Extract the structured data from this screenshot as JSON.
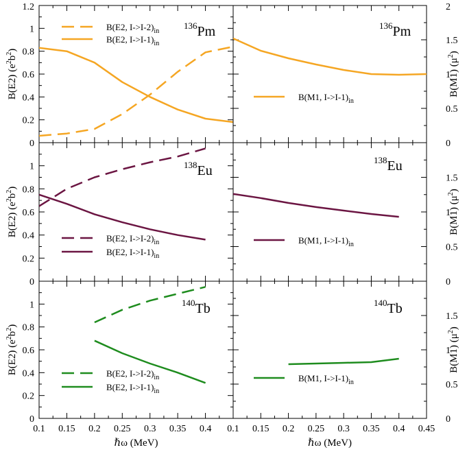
{
  "chart_data": [
    {
      "type": "line",
      "panel": "top-left",
      "nucleus": {
        "mass": "136",
        "symbol": "Pm"
      },
      "ylabel": {
        "main": "B(E2) (e",
        "sup1": "2",
        "mid": "b",
        "sup2": "2",
        "end": ")"
      },
      "xlim": [
        0.1,
        0.45
      ],
      "ylim": [
        0,
        1.2
      ],
      "yticks": [
        "0",
        "0.2",
        "0.4",
        "0.6",
        "0.8",
        "1",
        "1.2"
      ],
      "color": "#f5a623",
      "series": [
        {
          "name": "B(E2, I->I-2)",
          "sub": "in",
          "dash": true,
          "x": [
            0.1,
            0.15,
            0.2,
            0.25,
            0.3,
            0.35,
            0.4,
            0.45
          ],
          "values": [
            0.06,
            0.08,
            0.12,
            0.25,
            0.42,
            0.62,
            0.79,
            0.84
          ]
        },
        {
          "name": "B(E2, I->I-1)",
          "sub": "in",
          "dash": false,
          "x": [
            0.1,
            0.15,
            0.2,
            0.25,
            0.3,
            0.35,
            0.4,
            0.45
          ],
          "values": [
            0.83,
            0.8,
            0.7,
            0.53,
            0.4,
            0.29,
            0.21,
            0.18
          ]
        }
      ]
    },
    {
      "type": "line",
      "panel": "top-right",
      "nucleus": {
        "mass": "136",
        "symbol": "Pm"
      },
      "ylabel": {
        "main": "B(M1) (μ",
        "sup1": "2",
        "end": ")"
      },
      "xlim": [
        0.1,
        0.45
      ],
      "ylim": [
        0,
        2
      ],
      "yticks": [
        "0",
        "0.5",
        "1",
        "1.5",
        "2"
      ],
      "color": "#f5a623",
      "series": [
        {
          "name": "B(M1, I->I-1)",
          "sub": "in",
          "dash": false,
          "x": [
            0.1,
            0.15,
            0.2,
            0.25,
            0.3,
            0.35,
            0.4,
            0.45
          ],
          "values": [
            1.52,
            1.34,
            1.23,
            1.14,
            1.06,
            1.0,
            0.99,
            1.0
          ]
        }
      ]
    },
    {
      "type": "line",
      "panel": "middle-left",
      "nucleus": {
        "mass": "138",
        "symbol": "Eu"
      },
      "ylabel": {
        "main": "B(E2) (e",
        "sup1": "2",
        "mid": "b",
        "sup2": "2",
        "end": ")"
      },
      "xlim": [
        0.1,
        0.45
      ],
      "ylim": [
        0,
        1.2
      ],
      "yticks": [
        "0",
        "0.2",
        "0.4",
        "0.6",
        "0.8",
        "1"
      ],
      "color": "#6b1542",
      "series": [
        {
          "name": "B(E2, I->I-2)",
          "sub": "in",
          "dash": true,
          "x": [
            0.1,
            0.15,
            0.2,
            0.25,
            0.3,
            0.35,
            0.4
          ],
          "values": [
            0.65,
            0.8,
            0.9,
            0.97,
            1.03,
            1.08,
            1.15
          ]
        },
        {
          "name": "B(E2, I->I-1)",
          "sub": "in",
          "dash": false,
          "x": [
            0.1,
            0.15,
            0.2,
            0.25,
            0.3,
            0.35,
            0.4
          ],
          "values": [
            0.75,
            0.67,
            0.58,
            0.51,
            0.45,
            0.4,
            0.36
          ]
        }
      ]
    },
    {
      "type": "line",
      "panel": "middle-right",
      "nucleus": {
        "mass": "138",
        "symbol": "Eu"
      },
      "ylabel": {
        "main": "B(M1) (μ",
        "sup1": "2",
        "end": ")"
      },
      "xlim": [
        0.1,
        0.45
      ],
      "ylim": [
        0,
        2
      ],
      "yticks": [
        "0",
        "0.5",
        "1",
        "1.5"
      ],
      "color": "#6b1542",
      "series": [
        {
          "name": "B(M1, I->I-1)",
          "sub": "in",
          "dash": false,
          "x": [
            0.1,
            0.15,
            0.2,
            0.25,
            0.3,
            0.35,
            0.4
          ],
          "values": [
            1.26,
            1.2,
            1.13,
            1.07,
            1.02,
            0.97,
            0.93
          ]
        }
      ]
    },
    {
      "type": "line",
      "panel": "bottom-left",
      "nucleus": {
        "mass": "140",
        "symbol": "Tb"
      },
      "ylabel": {
        "main": "B(E2) (e",
        "sup1": "2",
        "mid": "b",
        "sup2": "2",
        "end": ")"
      },
      "xlabel": "ℏω (MeV)",
      "xlim": [
        0.1,
        0.45
      ],
      "xticks": [
        "0.1",
        "0.15",
        "0.2",
        "0.25",
        "0.3",
        "0.35",
        "0.4"
      ],
      "ylim": [
        0,
        1.2
      ],
      "yticks": [
        "0",
        "0.2",
        "0.4",
        "0.6",
        "0.8",
        "1"
      ],
      "color": "#1e8c1e",
      "series": [
        {
          "name": "B(E2, I->I-2)",
          "sub": "in",
          "dash": true,
          "x": [
            0.2,
            0.25,
            0.3,
            0.35,
            0.4
          ],
          "values": [
            0.84,
            0.95,
            1.03,
            1.09,
            1.15
          ]
        },
        {
          "name": "B(E2, I->I-1)",
          "sub": "in",
          "dash": false,
          "x": [
            0.2,
            0.25,
            0.3,
            0.35,
            0.4
          ],
          "values": [
            0.68,
            0.57,
            0.48,
            0.4,
            0.31
          ]
        }
      ]
    },
    {
      "type": "line",
      "panel": "bottom-right",
      "nucleus": {
        "mass": "140",
        "symbol": "Tb"
      },
      "ylabel": {
        "main": "B(M1) (μ",
        "sup1": "2",
        "end": ")"
      },
      "xlabel": "ℏω (MeV)",
      "xlim": [
        0.1,
        0.45
      ],
      "xticks": [
        "0.1",
        "0.15",
        "0.2",
        "0.25",
        "0.3",
        "0.35",
        "0.4",
        "0.45"
      ],
      "ylim": [
        0,
        2
      ],
      "yticks": [
        "0",
        "0.5",
        "1",
        "1.5"
      ],
      "color": "#1e8c1e",
      "series": [
        {
          "name": "B(M1, I->I-1)",
          "sub": "in",
          "dash": false,
          "x": [
            0.2,
            0.25,
            0.3,
            0.35,
            0.4
          ],
          "values": [
            0.79,
            0.8,
            0.81,
            0.82,
            0.87
          ]
        }
      ]
    }
  ]
}
